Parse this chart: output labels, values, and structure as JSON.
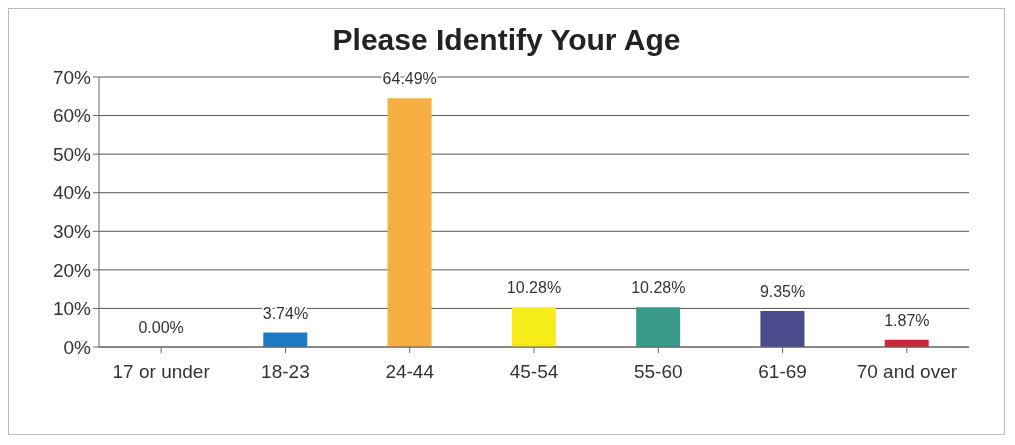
{
  "chart_data": {
    "type": "bar",
    "title": "Please Identify Your Age",
    "categories": [
      "17 or under",
      "18-23",
      "24-44",
      "45-54",
      "55-60",
      "61-69",
      "70 and over"
    ],
    "values": [
      0,
      3.74,
      64.49,
      10.28,
      10.28,
      9.35,
      1.87
    ],
    "colors": [
      "#808080",
      "#1f7bc1",
      "#f5b041",
      "#f5ec1a",
      "#3a9a8a",
      "#4b4a8c",
      "#c8283c"
    ],
    "value_labels": [
      "0.00%",
      "3.74%",
      "64.49%",
      "10.28%",
      "10.28%",
      "9.35%",
      "1.87%"
    ],
    "ylim": [
      0,
      70
    ],
    "yticks": [
      {
        "value": 0,
        "label": "0%"
      },
      {
        "value": 10,
        "label": "10%"
      },
      {
        "value": 20,
        "label": "20%"
      },
      {
        "value": 30,
        "label": "30%"
      },
      {
        "value": 40,
        "label": "40%"
      },
      {
        "value": 50,
        "label": "50%"
      },
      {
        "value": 60,
        "label": "60%"
      },
      {
        "value": 70,
        "label": "70%"
      }
    ],
    "grid": "y"
  }
}
